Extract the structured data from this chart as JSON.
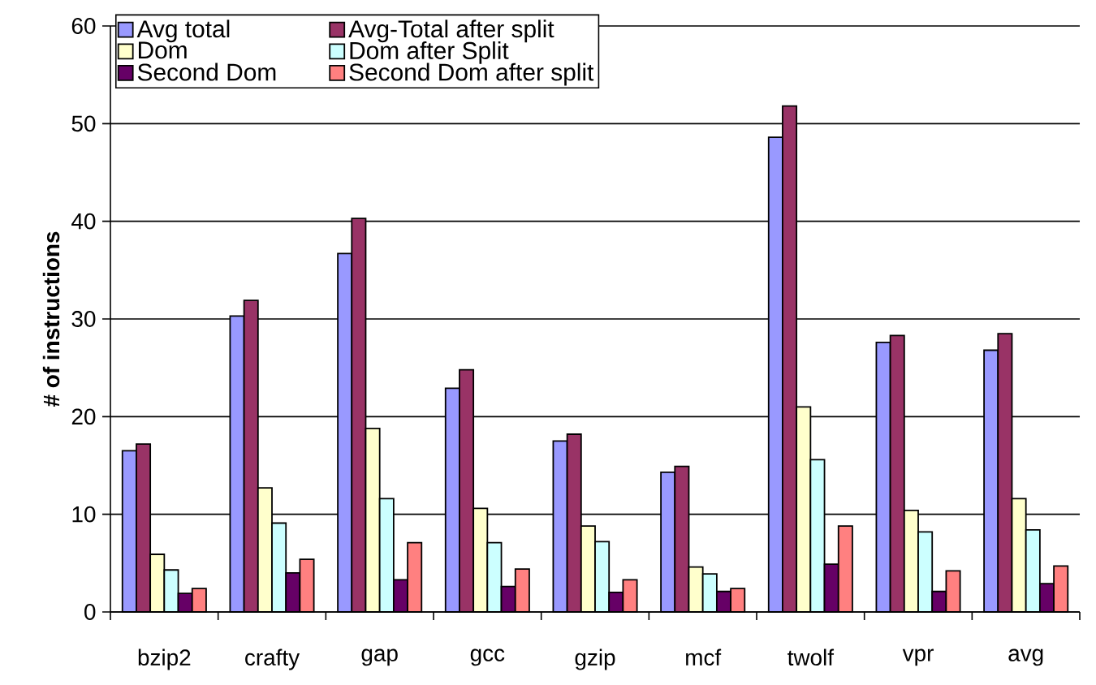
{
  "chart_data": {
    "type": "bar",
    "ylabel": "# of instructions",
    "categories": [
      "bzip2",
      "crafty",
      "gap",
      "gcc",
      "gzip",
      "mcf",
      "twolf",
      "vpr",
      "avg"
    ],
    "series": [
      {
        "name": "Avg total",
        "color": "#9999ff",
        "values": [
          16.5,
          30.3,
          36.7,
          22.9,
          17.5,
          14.3,
          48.6,
          27.6,
          26.8
        ]
      },
      {
        "name": "Avg-Total after split",
        "color": "#993366",
        "values": [
          17.2,
          31.9,
          40.3,
          24.8,
          18.2,
          14.9,
          51.8,
          28.3,
          28.5
        ]
      },
      {
        "name": "Dom",
        "color": "#ffffcc",
        "values": [
          5.9,
          12.7,
          18.8,
          10.6,
          8.8,
          4.6,
          21.0,
          10.4,
          11.6
        ]
      },
      {
        "name": "Dom after Split",
        "color": "#ccffff",
        "values": [
          4.3,
          9.1,
          11.6,
          7.1,
          7.2,
          3.9,
          15.6,
          8.2,
          8.4
        ]
      },
      {
        "name": "Second Dom",
        "color": "#660066",
        "values": [
          1.9,
          4.0,
          3.3,
          2.6,
          2.0,
          2.1,
          4.9,
          2.1,
          2.9
        ]
      },
      {
        "name": "Second Dom after split",
        "color": "#ff8080",
        "values": [
          2.4,
          5.4,
          7.1,
          4.4,
          3.3,
          2.4,
          8.8,
          4.2,
          4.7
        ]
      }
    ],
    "ylim": [
      0,
      60
    ],
    "yticks": [
      0,
      10,
      20,
      30,
      40,
      50,
      60
    ],
    "grid": "y",
    "legend": "top left"
  }
}
